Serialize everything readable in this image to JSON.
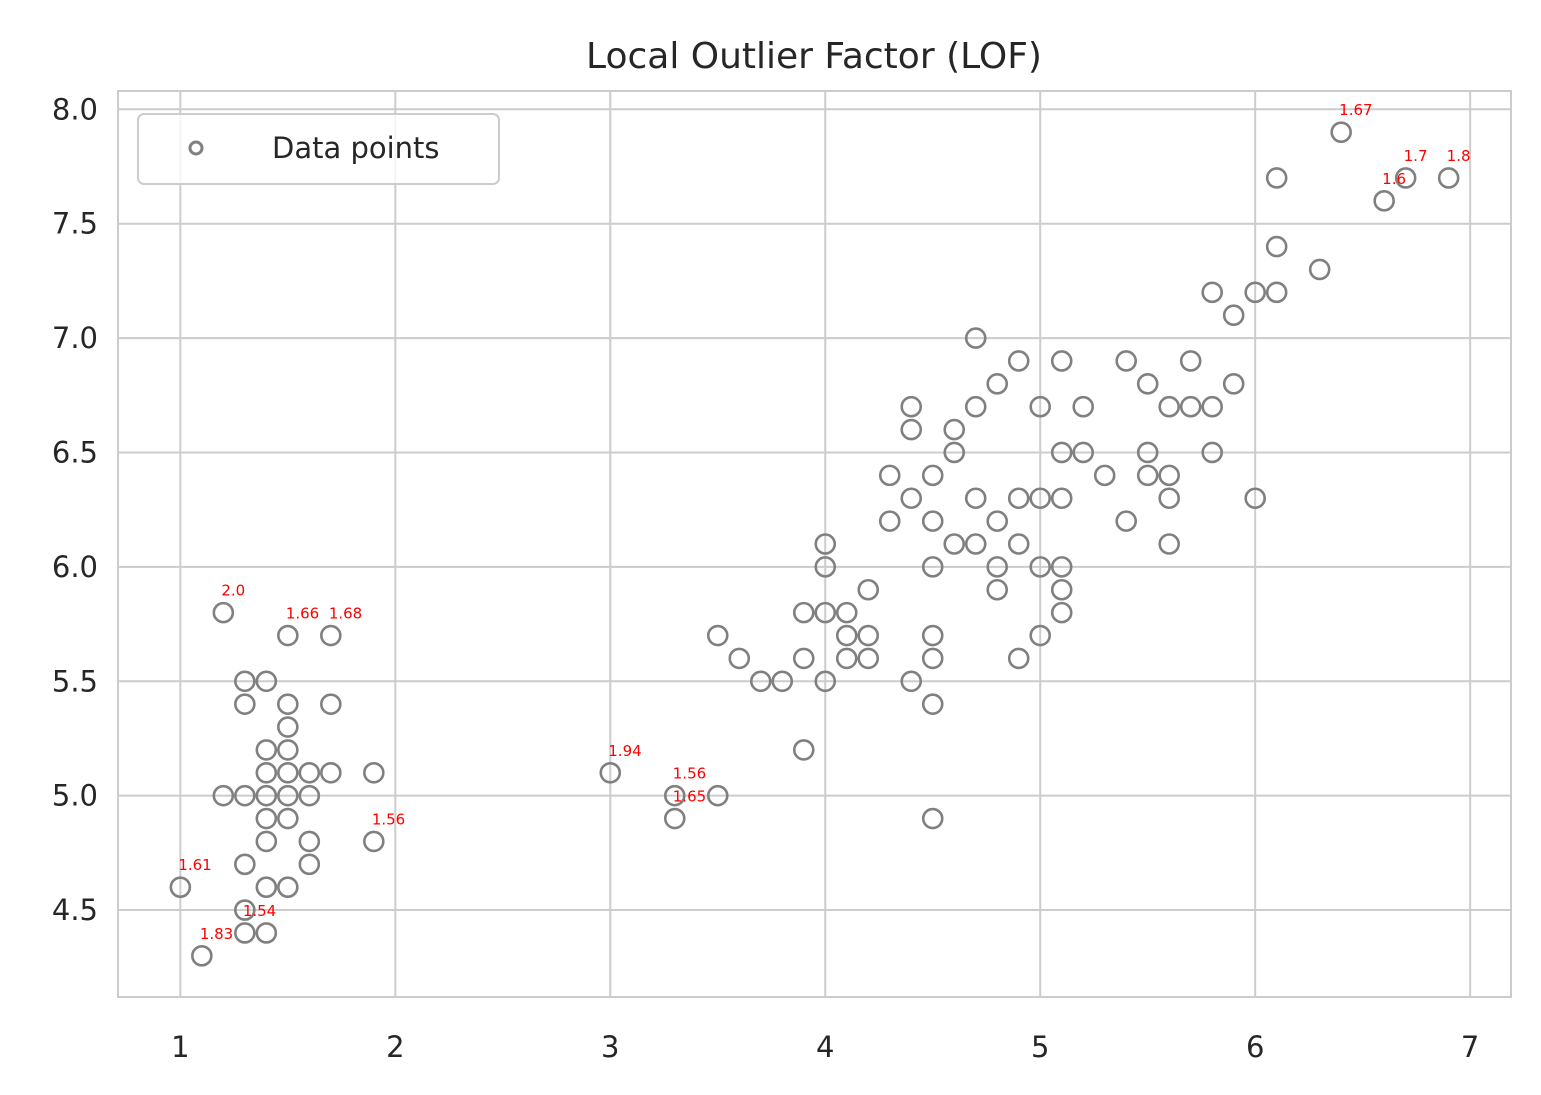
{
  "chart_data": {
    "type": "scatter",
    "title": "Local Outlier Factor (LOF)",
    "xlabel": "",
    "ylabel": "",
    "xlim": [
      0.71,
      7.19
    ],
    "ylim": [
      4.12,
      8.08
    ],
    "xticks": [
      1,
      2,
      3,
      4,
      5,
      6,
      7
    ],
    "xtick_labels": [
      "1",
      "2",
      "3",
      "4",
      "5",
      "6",
      "7"
    ],
    "yticks": [
      4.5,
      5.0,
      5.5,
      6.0,
      6.5,
      7.0,
      7.5,
      8.0
    ],
    "ytick_labels": [
      "4.5",
      "5.0",
      "5.5",
      "6.0",
      "6.5",
      "7.0",
      "7.5",
      "8.0"
    ],
    "grid": true,
    "legend": {
      "position": "top-left",
      "entries": [
        "Data points"
      ]
    },
    "colors": {
      "points": "#808080",
      "annotations": "#ff0000",
      "grid": "#cccccc",
      "text": "#262626"
    },
    "series": [
      {
        "name": "Data points",
        "points": [
          [
            1.2,
            5.8
          ],
          [
            1.5,
            5.7
          ],
          [
            1.7,
            5.7
          ],
          [
            1.3,
            5.5
          ],
          [
            1.4,
            5.5
          ],
          [
            1.3,
            5.4
          ],
          [
            1.5,
            5.4
          ],
          [
            1.7,
            5.4
          ],
          [
            1.5,
            5.3
          ],
          [
            1.4,
            5.2
          ],
          [
            1.5,
            5.2
          ],
          [
            1.4,
            5.1
          ],
          [
            1.5,
            5.1
          ],
          [
            1.6,
            5.1
          ],
          [
            1.7,
            5.1
          ],
          [
            1.9,
            5.1
          ],
          [
            1.2,
            5.0
          ],
          [
            1.3,
            5.0
          ],
          [
            1.4,
            5.0
          ],
          [
            1.5,
            5.0
          ],
          [
            1.6,
            5.0
          ],
          [
            1.4,
            4.9
          ],
          [
            1.5,
            4.9
          ],
          [
            1.4,
            4.8
          ],
          [
            1.6,
            4.8
          ],
          [
            1.9,
            4.8
          ],
          [
            1.3,
            4.7
          ],
          [
            1.6,
            4.7
          ],
          [
            1.0,
            4.6
          ],
          [
            1.4,
            4.6
          ],
          [
            1.5,
            4.6
          ],
          [
            1.3,
            4.5
          ],
          [
            1.3,
            4.4
          ],
          [
            1.4,
            4.4
          ],
          [
            1.1,
            4.3
          ],
          [
            3.0,
            5.1
          ],
          [
            3.3,
            5.0
          ],
          [
            3.5,
            5.0
          ],
          [
            3.3,
            4.9
          ],
          [
            3.5,
            5.7
          ],
          [
            3.6,
            5.6
          ],
          [
            3.7,
            5.5
          ],
          [
            3.8,
            5.5
          ],
          [
            3.9,
            5.8
          ],
          [
            3.9,
            5.6
          ],
          [
            3.9,
            5.2
          ],
          [
            4.0,
            6.1
          ],
          [
            4.0,
            6.0
          ],
          [
            4.0,
            5.8
          ],
          [
            4.0,
            5.5
          ],
          [
            4.1,
            5.8
          ],
          [
            4.1,
            5.7
          ],
          [
            4.1,
            5.6
          ],
          [
            4.2,
            5.9
          ],
          [
            4.2,
            5.7
          ],
          [
            4.2,
            5.6
          ],
          [
            4.3,
            6.4
          ],
          [
            4.3,
            6.2
          ],
          [
            4.4,
            6.7
          ],
          [
            4.4,
            6.6
          ],
          [
            4.4,
            6.3
          ],
          [
            4.4,
            5.5
          ],
          [
            4.5,
            6.4
          ],
          [
            4.5,
            6.2
          ],
          [
            4.5,
            6.0
          ],
          [
            4.5,
            5.7
          ],
          [
            4.5,
            5.6
          ],
          [
            4.5,
            5.4
          ],
          [
            4.5,
            4.9
          ],
          [
            4.6,
            6.6
          ],
          [
            4.6,
            6.5
          ],
          [
            4.6,
            6.1
          ],
          [
            4.7,
            7.0
          ],
          [
            4.7,
            6.7
          ],
          [
            4.7,
            6.3
          ],
          [
            4.7,
            6.1
          ],
          [
            4.8,
            6.8
          ],
          [
            4.8,
            6.2
          ],
          [
            4.8,
            6.0
          ],
          [
            4.8,
            5.9
          ],
          [
            4.9,
            6.9
          ],
          [
            4.9,
            6.3
          ],
          [
            4.9,
            6.1
          ],
          [
            4.9,
            5.6
          ],
          [
            5.0,
            6.7
          ],
          [
            5.0,
            6.3
          ],
          [
            5.0,
            6.0
          ],
          [
            5.0,
            5.7
          ],
          [
            5.1,
            6.9
          ],
          [
            5.1,
            6.5
          ],
          [
            5.1,
            6.3
          ],
          [
            5.1,
            6.0
          ],
          [
            5.1,
            5.9
          ],
          [
            5.1,
            5.8
          ],
          [
            5.2,
            6.7
          ],
          [
            5.2,
            6.5
          ],
          [
            5.3,
            6.4
          ],
          [
            5.4,
            6.9
          ],
          [
            5.4,
            6.2
          ],
          [
            5.5,
            6.8
          ],
          [
            5.5,
            6.5
          ],
          [
            5.5,
            6.4
          ],
          [
            5.6,
            6.7
          ],
          [
            5.6,
            6.4
          ],
          [
            5.6,
            6.3
          ],
          [
            5.6,
            6.1
          ],
          [
            5.7,
            6.9
          ],
          [
            5.7,
            6.7
          ],
          [
            5.8,
            7.2
          ],
          [
            5.8,
            6.7
          ],
          [
            5.8,
            6.5
          ],
          [
            5.9,
            7.1
          ],
          [
            5.9,
            6.8
          ],
          [
            6.0,
            7.2
          ],
          [
            6.0,
            6.3
          ],
          [
            6.1,
            7.7
          ],
          [
            6.1,
            7.4
          ],
          [
            6.1,
            7.2
          ],
          [
            6.3,
            7.3
          ],
          [
            6.4,
            7.9
          ],
          [
            6.6,
            7.6
          ],
          [
            6.7,
            7.7
          ],
          [
            6.9,
            7.7
          ]
        ]
      }
    ],
    "annotations": [
      {
        "x": 1.2,
        "y": 5.8,
        "text": "2.0"
      },
      {
        "x": 1.5,
        "y": 5.7,
        "text": "1.66"
      },
      {
        "x": 1.7,
        "y": 5.7,
        "text": "1.68"
      },
      {
        "x": 1.9,
        "y": 4.8,
        "text": "1.56"
      },
      {
        "x": 1.0,
        "y": 4.6,
        "text": "1.61"
      },
      {
        "x": 1.3,
        "y": 4.4,
        "text": "1.54"
      },
      {
        "x": 1.1,
        "y": 4.3,
        "text": "1.83"
      },
      {
        "x": 3.0,
        "y": 5.1,
        "text": "1.94"
      },
      {
        "x": 3.3,
        "y": 5.0,
        "text": "1.56"
      },
      {
        "x": 3.3,
        "y": 4.9,
        "text": "1.65"
      },
      {
        "x": 6.4,
        "y": 7.9,
        "text": "1.67"
      },
      {
        "x": 6.6,
        "y": 7.6,
        "text": "1.6"
      },
      {
        "x": 6.7,
        "y": 7.7,
        "text": "1.7"
      },
      {
        "x": 6.9,
        "y": 7.7,
        "text": "1.8"
      }
    ]
  }
}
